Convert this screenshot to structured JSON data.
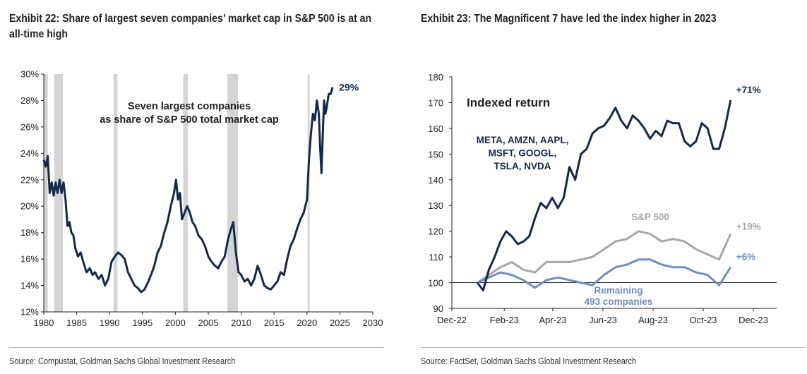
{
  "left": {
    "title": "Exhibit 22: Share of largest seven companies’ market cap in S&P 500 is at an all-time high",
    "source": "Source: Compustat, Goldman Sachs Global Investment Research"
  },
  "right": {
    "title": "Exhibit 23: The Magnificent 7 have led the index higher in 2023",
    "source": "Source: FactSet, Goldman Sachs Global Investment Research"
  },
  "chart_data": [
    {
      "type": "line",
      "title": "Exhibit 22: Share of largest seven companies’ market cap in S&P 500 is at an all-time high",
      "annotation_lines": [
        "Seven largest companies",
        "as share of S&P 500 total market cap"
      ],
      "end_label": "29%",
      "xlim": [
        1980,
        2030
      ],
      "ylim": [
        12,
        30
      ],
      "x_ticks": [
        "1980",
        "1985",
        "1990",
        "1995",
        "2000",
        "2005",
        "2010",
        "2015",
        "2020",
        "2025",
        "2030"
      ],
      "y_ticks": [
        "12%",
        "14%",
        "16%",
        "18%",
        "20%",
        "22%",
        "24%",
        "26%",
        "28%",
        "30%"
      ],
      "recession_shading": [
        [
          1980.0,
          1980.6
        ],
        [
          1981.6,
          1982.9
        ],
        [
          1990.6,
          1991.2
        ],
        [
          2001.2,
          2001.9
        ],
        [
          2007.9,
          2009.5
        ],
        [
          2020.1,
          2020.4
        ]
      ],
      "line_color": "#14284b",
      "series": [
        {
          "x": [
            1980.0,
            1980.3,
            1980.6,
            1980.9,
            1981.2,
            1981.5,
            1981.8,
            1982.1,
            1982.4,
            1982.7,
            1983.0,
            1983.3,
            1983.6,
            1983.9,
            1984.2,
            1984.5,
            1984.8,
            1985.2,
            1985.6,
            1986.0,
            1986.5,
            1987.0,
            1987.4,
            1987.8,
            1988.3,
            1988.8,
            1989.3,
            1989.8,
            1990.3,
            1990.8,
            1991.3,
            1991.8,
            1992.3,
            1992.8,
            1993.3,
            1993.8,
            1994.3,
            1994.8,
            1995.3,
            1995.8,
            1996.3,
            1996.8,
            1997.3,
            1997.8,
            1998.3,
            1998.8,
            1999.3,
            1999.8,
            2000.1,
            2000.4,
            2000.7,
            2001.0,
            2001.4,
            2001.8,
            2002.2,
            2002.6,
            2003.0,
            2003.5,
            2004.0,
            2004.5,
            2005.0,
            2005.5,
            2006.0,
            2006.5,
            2007.0,
            2007.5,
            2008.0,
            2008.4,
            2008.8,
            2009.2,
            2009.6,
            2010.0,
            2010.5,
            2011.0,
            2011.5,
            2012.0,
            2012.5,
            2013.0,
            2013.5,
            2014.0,
            2014.5,
            2015.0,
            2015.5,
            2016.0,
            2016.5,
            2017.0,
            2017.5,
            2018.0,
            2018.5,
            2019.0,
            2019.5,
            2020.0,
            2020.3,
            2020.6,
            2020.9,
            2021.2,
            2021.5,
            2021.8,
            2022.0,
            2022.2,
            2022.4,
            2022.6,
            2022.8,
            2023.0,
            2023.3,
            2023.6,
            2023.9
          ],
          "y": [
            23.5,
            23.0,
            23.8,
            21.0,
            21.8,
            20.8,
            21.8,
            21.0,
            22.0,
            21.0,
            21.8,
            20.5,
            18.5,
            18.8,
            18.0,
            17.8,
            16.8,
            16.2,
            16.5,
            15.8,
            15.0,
            15.3,
            14.8,
            15.0,
            14.5,
            14.8,
            14.0,
            14.5,
            15.8,
            16.2,
            16.5,
            16.3,
            16.0,
            15.0,
            14.5,
            14.0,
            13.8,
            13.5,
            13.7,
            14.2,
            14.8,
            15.5,
            16.5,
            17.0,
            18.0,
            18.8,
            20.0,
            21.0,
            22.0,
            20.5,
            21.0,
            19.0,
            19.5,
            20.0,
            19.5,
            18.8,
            18.5,
            17.8,
            17.5,
            17.0,
            16.2,
            15.8,
            15.5,
            15.3,
            15.8,
            16.2,
            17.5,
            18.2,
            18.8,
            16.5,
            15.0,
            14.8,
            14.3,
            14.5,
            14.0,
            14.5,
            15.5,
            14.8,
            14.0,
            13.8,
            13.7,
            14.0,
            14.3,
            15.0,
            14.8,
            16.0,
            17.0,
            17.5,
            18.3,
            19.0,
            19.5,
            20.5,
            23.5,
            25.5,
            27.0,
            26.5,
            28.0,
            27.0,
            24.5,
            22.5,
            25.5,
            28.0,
            27.0,
            27.5,
            28.5,
            28.5,
            29.0
          ]
        }
      ]
    },
    {
      "type": "line",
      "title": "Exhibit 23: The Magnificent 7 have led the index higher in 2023",
      "subtitle": "Indexed return",
      "xlim": [
        "2022-12-01",
        "2023-12-31"
      ],
      "ylim": [
        90,
        180
      ],
      "x_ticks": [
        "Dec-22",
        "Feb-23",
        "Apr-23",
        "Jun-23",
        "Aug-23",
        "Oct-23",
        "Dec-23"
      ],
      "y_ticks": [
        "90",
        "100",
        "110",
        "120",
        "130",
        "140",
        "150",
        "160",
        "170",
        "180"
      ],
      "baseline": 100,
      "series": [
        {
          "name_lines": [
            "META, AMZN, AAPL,",
            "MSFT, GOOGL,",
            "TSLA, NVDA"
          ],
          "end_label": "+71%",
          "color": "#14284b",
          "x": [
            "2023-01-01",
            "2023-01-08",
            "2023-01-15",
            "2023-01-22",
            "2023-01-29",
            "2023-02-05",
            "2023-02-12",
            "2023-02-19",
            "2023-02-26",
            "2023-03-05",
            "2023-03-12",
            "2023-03-19",
            "2023-03-26",
            "2023-04-02",
            "2023-04-09",
            "2023-04-16",
            "2023-04-23",
            "2023-04-30",
            "2023-05-07",
            "2023-05-14",
            "2023-05-21",
            "2023-05-28",
            "2023-06-04",
            "2023-06-11",
            "2023-06-18",
            "2023-06-25",
            "2023-07-02",
            "2023-07-09",
            "2023-07-16",
            "2023-07-23",
            "2023-07-30",
            "2023-08-06",
            "2023-08-13",
            "2023-08-20",
            "2023-08-27",
            "2023-09-03",
            "2023-09-10",
            "2023-09-17",
            "2023-09-24",
            "2023-10-01",
            "2023-10-08",
            "2023-10-15",
            "2023-10-22",
            "2023-10-29",
            "2023-11-05"
          ],
          "y": [
            100,
            97,
            105,
            110,
            116,
            120,
            118,
            115,
            116,
            118,
            125,
            131,
            129,
            133,
            129,
            133,
            145,
            140,
            150,
            152,
            158,
            160,
            161,
            164,
            168,
            163,
            160,
            165,
            163,
            160,
            156,
            159,
            157,
            163,
            162,
            162,
            155,
            153,
            155,
            162,
            160,
            152,
            152,
            160,
            171
          ]
        },
        {
          "name": "S&P 500",
          "end_label": "+19%",
          "color": "#a6a6a6",
          "x": [
            "2023-01-01",
            "2023-01-15",
            "2023-01-29",
            "2023-02-12",
            "2023-02-26",
            "2023-03-12",
            "2023-03-26",
            "2023-04-09",
            "2023-04-23",
            "2023-05-07",
            "2023-05-21",
            "2023-06-04",
            "2023-06-18",
            "2023-07-02",
            "2023-07-16",
            "2023-07-30",
            "2023-08-13",
            "2023-08-27",
            "2023-09-10",
            "2023-09-24",
            "2023-10-08",
            "2023-10-22",
            "2023-11-05"
          ],
          "y": [
            100,
            103,
            106,
            108,
            105,
            104,
            108,
            108,
            108,
            109,
            110,
            113,
            116,
            117,
            120,
            119,
            116,
            117,
            116,
            113,
            111,
            109,
            119
          ]
        },
        {
          "name_lines": [
            "Remaining",
            "493 companies"
          ],
          "end_label": "+6%",
          "color": "#6f8fc0",
          "x": [
            "2023-01-01",
            "2023-01-15",
            "2023-01-29",
            "2023-02-12",
            "2023-02-26",
            "2023-03-12",
            "2023-03-26",
            "2023-04-09",
            "2023-04-23",
            "2023-05-07",
            "2023-05-21",
            "2023-06-04",
            "2023-06-18",
            "2023-07-02",
            "2023-07-16",
            "2023-07-30",
            "2023-08-13",
            "2023-08-27",
            "2023-09-10",
            "2023-09-24",
            "2023-10-08",
            "2023-10-22",
            "2023-11-05"
          ],
          "y": [
            100,
            102,
            104,
            103,
            101,
            98,
            101,
            102,
            101,
            100,
            99,
            103,
            106,
            107,
            109,
            109,
            107,
            106,
            106,
            104,
            103,
            99,
            106
          ]
        }
      ]
    }
  ]
}
